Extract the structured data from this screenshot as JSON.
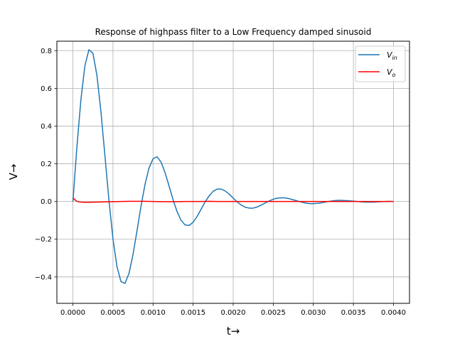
{
  "chart_data": {
    "type": "line",
    "title": "Response of highpass filter to a Low Frequency damped sinusoid",
    "xlabel": "t→",
    "ylabel": "V→",
    "xlim": [
      -0.0002,
      0.0042
    ],
    "ylim": [
      -0.54,
      0.85
    ],
    "xticks": [
      0.0,
      0.0005,
      0.001,
      0.0015,
      0.002,
      0.0025,
      0.003,
      0.0035,
      0.004
    ],
    "xtick_labels": [
      "0.0000",
      "0.0005",
      "0.0010",
      "0.0015",
      "0.0020",
      "0.0025",
      "0.0030",
      "0.0035",
      "0.0040"
    ],
    "yticks": [
      -0.4,
      -0.2,
      0.0,
      0.2,
      0.4,
      0.6,
      0.8
    ],
    "ytick_labels": [
      "−0.4",
      "−0.2",
      "0.0",
      "0.2",
      "0.4",
      "0.6",
      "0.8"
    ],
    "grid": true,
    "legend_position": "top-right",
    "series": [
      {
        "name": "V_in",
        "legend_base": "V",
        "legend_sub": "in",
        "color": "#1f77b4",
        "x": [
          0.0,
          5e-05,
          0.0001,
          0.00015,
          0.0002,
          0.00025,
          0.0003,
          0.00035,
          0.0004,
          0.00045,
          0.0005,
          0.00055,
          0.0006,
          0.00065,
          0.0007,
          0.00075,
          0.0008,
          0.00085,
          0.0009,
          0.00095,
          0.001,
          0.00105,
          0.0011,
          0.00115,
          0.0012,
          0.00125,
          0.0013,
          0.00135,
          0.0014,
          0.00145,
          0.0015,
          0.00155,
          0.0016,
          0.00165,
          0.0017,
          0.00175,
          0.0018,
          0.00185,
          0.0019,
          0.00195,
          0.002,
          0.00205,
          0.0021,
          0.00215,
          0.0022,
          0.00225,
          0.0023,
          0.00235,
          0.0024,
          0.00245,
          0.0025,
          0.00255,
          0.0026,
          0.00265,
          0.0027,
          0.00275,
          0.0028,
          0.00285,
          0.0029,
          0.00295,
          0.003,
          0.00305,
          0.0031,
          0.00315,
          0.0032,
          0.00325,
          0.0033,
          0.00335,
          0.0034,
          0.00345,
          0.0035,
          0.00355,
          0.0036,
          0.00365,
          0.0037,
          0.00375,
          0.0038,
          0.00385,
          0.0039,
          0.00395,
          0.004
        ],
        "y": [
          0.0,
          0.29,
          0.541,
          0.721,
          0.805,
          0.786,
          0.668,
          0.475,
          0.241,
          0.005,
          -0.199,
          -0.346,
          -0.425,
          -0.434,
          -0.381,
          -0.281,
          -0.155,
          -0.024,
          0.091,
          0.178,
          0.227,
          0.237,
          0.209,
          0.153,
          0.082,
          0.009,
          -0.054,
          -0.1,
          -0.124,
          -0.127,
          -0.11,
          -0.079,
          -0.041,
          -0.002,
          0.03,
          0.054,
          0.066,
          0.066,
          0.056,
          0.039,
          0.018,
          -0.002,
          -0.019,
          -0.03,
          -0.035,
          -0.035,
          -0.029,
          -0.019,
          -0.008,
          0.003,
          0.012,
          0.018,
          0.02,
          0.019,
          0.015,
          0.009,
          0.003,
          -0.003,
          -0.008,
          -0.011,
          -0.011,
          -0.01,
          -0.007,
          -0.003,
          0.001,
          0.004,
          0.006,
          0.006,
          0.005,
          0.004,
          0.002,
          0.0,
          -0.002,
          -0.003,
          -0.003,
          -0.003,
          -0.002,
          -0.001,
          0.0,
          0.001,
          0.0
        ]
      },
      {
        "name": "V_o",
        "legend_base": "V",
        "legend_sub": "o",
        "color": "#ff0000",
        "x": [
          0.0,
          2e-05,
          4e-05,
          6e-05,
          0.0001,
          0.00015,
          0.0002,
          0.0003,
          0.0004,
          0.0005,
          0.0006,
          0.0007,
          0.0008,
          0.0009,
          0.001,
          0.0011,
          0.0012,
          0.0013,
          0.0014,
          0.0015,
          0.0016,
          0.0017,
          0.0018,
          0.0019,
          0.002,
          0.0022,
          0.0024,
          0.0026,
          0.0028,
          0.003,
          0.0032,
          0.0034,
          0.0036,
          0.0038,
          0.004
        ],
        "y": [
          0.018,
          0.012,
          0.004,
          -0.001,
          -0.003,
          -0.004,
          -0.004,
          -0.003,
          -0.002,
          -0.001,
          0.0,
          0.001,
          0.001,
          0.001,
          0.0,
          -0.001,
          -0.001,
          -0.001,
          0.0,
          0.0,
          0.0,
          0.001,
          0.0,
          0.0,
          0.0,
          0.0,
          0.0,
          0.0,
          0.0,
          0.0,
          0.0,
          0.0,
          0.0,
          0.0,
          0.0
        ]
      }
    ]
  }
}
